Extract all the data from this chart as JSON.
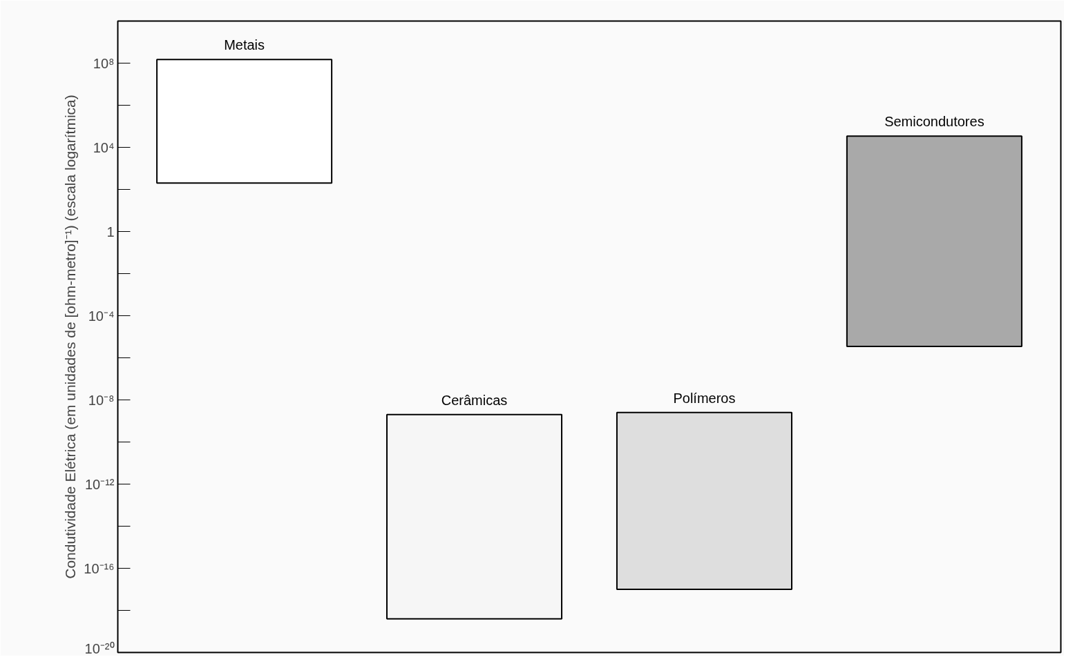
{
  "chart_data": {
    "type": "bar",
    "ylabel": "Condutividade Elétrica (em unidades de [ohm-metro]⁻¹) (escala logarítmica)",
    "categories": [
      "Metais",
      "Cerâmicas",
      "Polímeros",
      "Semicondutores"
    ],
    "base": [
      200,
      4e-19,
      1e-17,
      3.5e-06
    ],
    "values": [
      150000000.0,
      2e-09,
      2.5e-09,
      34000.0
    ],
    "colors": [
      "#ffffff",
      "#f6f6f6",
      "#dedede",
      "#a9a9a9"
    ],
    "log": true,
    "ylim": [
      1e-20,
      10000000000.0
    ],
    "yticks": [
      {
        "value": 100000000.0,
        "label": "10⁸"
      },
      {
        "value": 10000.0,
        "label": "10⁴"
      },
      1,
      {
        "value": 0.0001,
        "label": "10⁻⁴"
      },
      {
        "value": 1e-08,
        "label": "10⁻⁸"
      },
      {
        "value": 1e-12,
        "label": "10⁻¹²"
      },
      {
        "value": 1e-16,
        "label": "10⁻¹⁶"
      },
      {
        "value": 1e-20,
        "label": "10⁻²⁰"
      }
    ],
    "grid": false
  }
}
